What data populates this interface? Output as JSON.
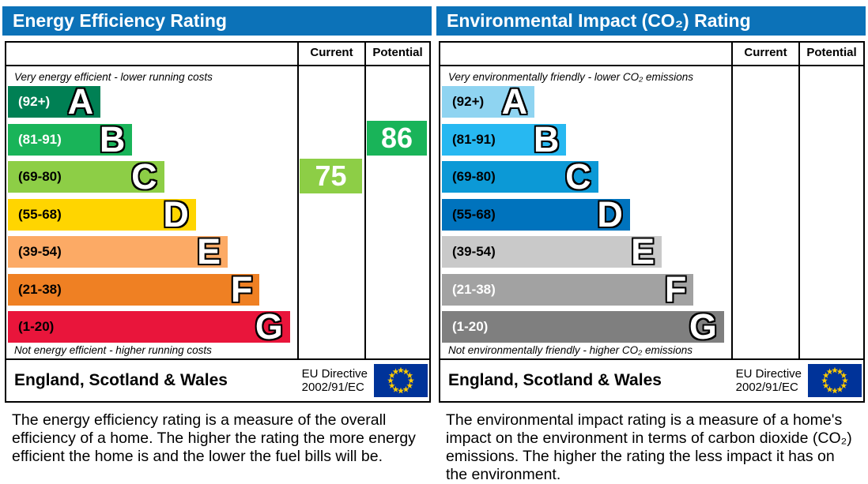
{
  "ui": {
    "header_bg": "#0c72b8",
    "table_border": "#000000",
    "value_text_color": "#ffffff",
    "eu_flag": {
      "bg": "#003399",
      "star": "#ffcc00"
    }
  },
  "chart_data": [
    {
      "type": "bar",
      "title": "Energy Efficiency Rating",
      "columns": [
        "Current",
        "Potential"
      ],
      "top_caption": "Very energy efficient - lower running costs",
      "bottom_caption": "Not energy efficient - higher running costs",
      "bands": [
        {
          "grade": "A",
          "range": "(92+)",
          "min": 92,
          "max": 100,
          "width_pct": 32,
          "color": "#008054",
          "range_text_color": "#ffffff"
        },
        {
          "grade": "B",
          "range": "(81-91)",
          "min": 81,
          "max": 91,
          "width_pct": 43,
          "color": "#19b459",
          "range_text_color": "#ffffff"
        },
        {
          "grade": "C",
          "range": "(69-80)",
          "min": 69,
          "max": 80,
          "width_pct": 54,
          "color": "#8dce46",
          "range_text_color": "#000000"
        },
        {
          "grade": "D",
          "range": "(55-68)",
          "min": 55,
          "max": 68,
          "width_pct": 65,
          "color": "#ffd500",
          "range_text_color": "#000000"
        },
        {
          "grade": "E",
          "range": "(39-54)",
          "min": 39,
          "max": 54,
          "width_pct": 76,
          "color": "#fcaa65",
          "range_text_color": "#000000"
        },
        {
          "grade": "F",
          "range": "(21-38)",
          "min": 21,
          "max": 38,
          "width_pct": 87,
          "color": "#ef8023",
          "range_text_color": "#000000"
        },
        {
          "grade": "G",
          "range": "(1-20)",
          "min": 1,
          "max": 20,
          "width_pct": 97.5,
          "color": "#e9153b",
          "range_text_color": "#000000"
        }
      ],
      "current": {
        "value": 75,
        "grade": "C",
        "band_index": 2,
        "color": "#8dce46"
      },
      "potential": {
        "value": 86,
        "grade": "B",
        "band_index": 1,
        "color": "#19b459"
      },
      "footer": {
        "region": "England, Scotland & Wales",
        "directive_line1": "EU Directive",
        "directive_line2": "2002/91/EC"
      },
      "description": "The energy efficiency rating is a measure of the overall efficiency of a home. The higher the rating the more energy efficient the home is and the lower the fuel bills will be."
    },
    {
      "type": "bar",
      "title": "Environmental Impact (CO₂) Rating",
      "columns": [
        "Current",
        "Potential"
      ],
      "top_caption": "Very environmentally friendly - lower CO₂ emissions",
      "bottom_caption": "Not environmentally friendly - higher CO₂ emissions",
      "bands": [
        {
          "grade": "A",
          "range": "(92+)",
          "min": 92,
          "max": 100,
          "width_pct": 32,
          "color": "#8fd4f1",
          "range_text_color": "#000000"
        },
        {
          "grade": "B",
          "range": "(81-91)",
          "min": 81,
          "max": 91,
          "width_pct": 43,
          "color": "#27b8f1",
          "range_text_color": "#000000"
        },
        {
          "grade": "C",
          "range": "(69-80)",
          "min": 69,
          "max": 80,
          "width_pct": 54,
          "color": "#0c99d6",
          "range_text_color": "#000000"
        },
        {
          "grade": "D",
          "range": "(55-68)",
          "min": 55,
          "max": 68,
          "width_pct": 65,
          "color": "#0073bd",
          "range_text_color": "#000000"
        },
        {
          "grade": "E",
          "range": "(39-54)",
          "min": 39,
          "max": 54,
          "width_pct": 76,
          "color": "#c9c9c9",
          "range_text_color": "#000000"
        },
        {
          "grade": "F",
          "range": "(21-38)",
          "min": 21,
          "max": 38,
          "width_pct": 87,
          "color": "#a2a2a2",
          "range_text_color": "#ffffff"
        },
        {
          "grade": "G",
          "range": "(1-20)",
          "min": 1,
          "max": 20,
          "width_pct": 97.5,
          "color": "#7f7f7f",
          "range_text_color": "#ffffff"
        }
      ],
      "current": null,
      "potential": null,
      "footer": {
        "region": "England, Scotland & Wales",
        "directive_line1": "EU Directive",
        "directive_line2": "2002/91/EC"
      },
      "description": "The environmental impact rating is a measure of a home's impact on the environment in terms of carbon dioxide (CO₂) emissions. The higher the rating the less impact it has on the environment."
    }
  ]
}
